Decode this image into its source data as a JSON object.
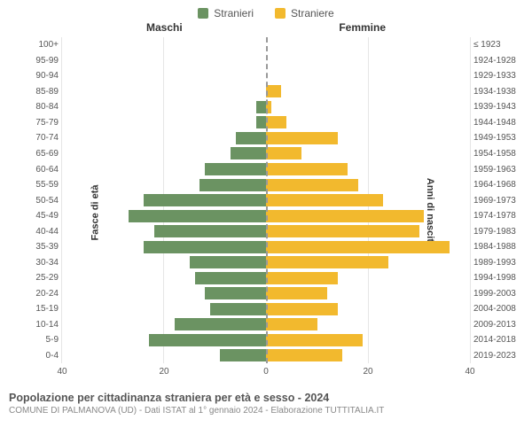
{
  "legend": {
    "male": {
      "label": "Stranieri",
      "color": "#6b9362"
    },
    "female": {
      "label": "Straniere",
      "color": "#f2b92e"
    }
  },
  "column_titles": {
    "left": "Maschi",
    "right": "Femmine"
  },
  "y_axis_left": {
    "title": "Fasce di età"
  },
  "y_axis_right": {
    "title": "Anni di nascita"
  },
  "x_axis": {
    "max": 40,
    "ticks_left": [
      40,
      20,
      0
    ],
    "ticks_right": [
      0,
      20,
      40
    ]
  },
  "grid_color": "#e6e6e6",
  "center_line_color": "#999999",
  "background_color": "#ffffff",
  "tick_fontsize": 10,
  "label_fontsize": 10,
  "rows": [
    {
      "age": "100+",
      "birth": "≤ 1923",
      "m": 0,
      "f": 0
    },
    {
      "age": "95-99",
      "birth": "1924-1928",
      "m": 0,
      "f": 0
    },
    {
      "age": "90-94",
      "birth": "1929-1933",
      "m": 0,
      "f": 0
    },
    {
      "age": "85-89",
      "birth": "1934-1938",
      "m": 0,
      "f": 3
    },
    {
      "age": "80-84",
      "birth": "1939-1943",
      "m": 2,
      "f": 1
    },
    {
      "age": "75-79",
      "birth": "1944-1948",
      "m": 2,
      "f": 4
    },
    {
      "age": "70-74",
      "birth": "1949-1953",
      "m": 6,
      "f": 14
    },
    {
      "age": "65-69",
      "birth": "1954-1958",
      "m": 7,
      "f": 7
    },
    {
      "age": "60-64",
      "birth": "1959-1963",
      "m": 12,
      "f": 16
    },
    {
      "age": "55-59",
      "birth": "1964-1968",
      "m": 13,
      "f": 18
    },
    {
      "age": "50-54",
      "birth": "1969-1973",
      "m": 24,
      "f": 23
    },
    {
      "age": "45-49",
      "birth": "1974-1978",
      "m": 27,
      "f": 31
    },
    {
      "age": "40-44",
      "birth": "1979-1983",
      "m": 22,
      "f": 30
    },
    {
      "age": "35-39",
      "birth": "1984-1988",
      "m": 24,
      "f": 36
    },
    {
      "age": "30-34",
      "birth": "1989-1993",
      "m": 15,
      "f": 24
    },
    {
      "age": "25-29",
      "birth": "1994-1998",
      "m": 14,
      "f": 14
    },
    {
      "age": "20-24",
      "birth": "1999-2003",
      "m": 12,
      "f": 12
    },
    {
      "age": "15-19",
      "birth": "2004-2008",
      "m": 11,
      "f": 14
    },
    {
      "age": "10-14",
      "birth": "2009-2013",
      "m": 18,
      "f": 10
    },
    {
      "age": "5-9",
      "birth": "2014-2018",
      "m": 23,
      "f": 19
    },
    {
      "age": "0-4",
      "birth": "2019-2023",
      "m": 9,
      "f": 15
    }
  ],
  "footer": {
    "title": "Popolazione per cittadinanza straniera per età e sesso - 2024",
    "subtitle": "COMUNE DI PALMANOVA (UD) - Dati ISTAT al 1° gennaio 2024 - Elaborazione TUTTITALIA.IT"
  }
}
